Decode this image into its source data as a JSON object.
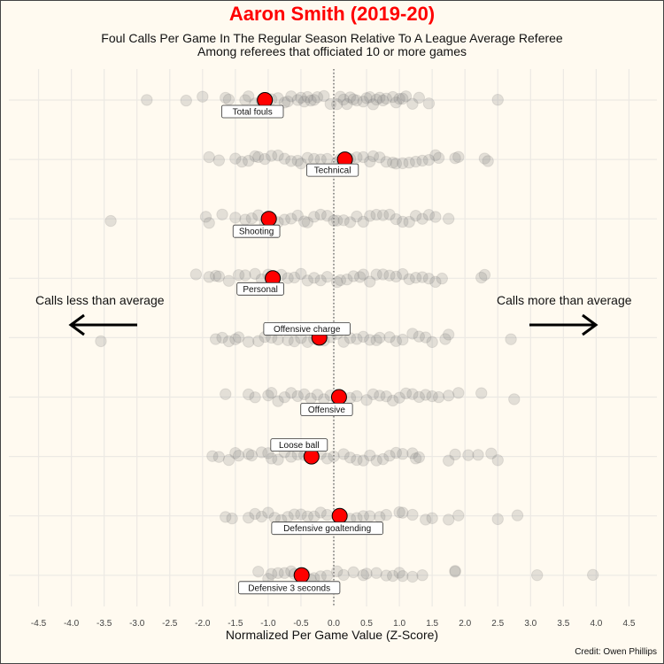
{
  "chart_data": {
    "type": "scatter",
    "title": "Aaron Smith (2019-20)",
    "subtitle_lines": [
      "Foul Calls Per Game In The Regular Season Relative To A League Average Referee",
      "Among referees that officiated 10 or more games"
    ],
    "xlabel": "Normalized Per Game Value (Z-Score)",
    "xlim": [
      -4.7,
      4.7
    ],
    "x_ticks": [
      -4.5,
      -4.0,
      -3.5,
      -3.0,
      -2.5,
      -2.0,
      -1.5,
      -1.0,
      -0.5,
      0.0,
      0.5,
      1.0,
      1.5,
      2.0,
      2.5,
      3.0,
      3.5,
      4.0,
      4.5
    ],
    "x_tick_labels": [
      "-4.5",
      "-4.0",
      "-3.5",
      "-3.0",
      "-2.5",
      "-2.0",
      "-1.5",
      "-1.0",
      "-0.5",
      "0.0",
      "0.5",
      "1.0",
      "1.5",
      "2.0",
      "2.5",
      "3.0",
      "3.5",
      "4.0",
      "4.5"
    ],
    "reference_line_x": 0,
    "grid": true,
    "highlight_color": "#ff0000",
    "point_color": "#808080",
    "categories": [
      "Total fouls",
      "Technical",
      "Shooting",
      "Personal",
      "Offensive charge",
      "Offensive",
      "Loose ball",
      "Defensive goaltending",
      "Defensive 3 seconds"
    ],
    "highlight_values": [
      -1.05,
      0.17,
      -0.99,
      -0.93,
      -0.22,
      0.08,
      -0.34,
      0.09,
      -0.49
    ],
    "series": [
      {
        "name": "Total fouls",
        "values": [
          -2.85,
          -2.25,
          -2.0,
          -1.65,
          -1.6,
          -1.35,
          -1.3,
          -1.2,
          -1.1,
          -0.95,
          -0.85,
          -0.75,
          -0.7,
          -0.65,
          -0.55,
          -0.5,
          -0.45,
          -0.4,
          -0.35,
          -0.3,
          -0.25,
          -0.15,
          -0.05,
          0.05,
          0.1,
          0.15,
          0.2,
          0.25,
          0.3,
          0.35,
          0.45,
          0.5,
          0.55,
          0.6,
          0.65,
          0.7,
          0.75,
          0.8,
          0.9,
          0.95,
          1.0,
          1.05,
          1.1,
          1.2,
          1.3,
          1.45,
          2.5
        ]
      },
      {
        "name": "Technical",
        "values": [
          -1.9,
          -1.75,
          -1.5,
          -1.4,
          -1.3,
          -1.2,
          -1.15,
          -1.05,
          -0.95,
          -0.85,
          -0.75,
          -0.65,
          -0.55,
          -0.5,
          -0.4,
          -0.3,
          -0.2,
          -0.1,
          0.05,
          0.1,
          0.25,
          0.35,
          0.45,
          0.55,
          0.6,
          0.7,
          0.8,
          0.9,
          0.95,
          1.05,
          1.15,
          1.25,
          1.35,
          1.45,
          1.55,
          1.6,
          1.85,
          1.9,
          2.3,
          2.35
        ]
      },
      {
        "name": "Shooting",
        "values": [
          -3.4,
          -1.95,
          -1.9,
          -1.7,
          -1.5,
          -1.35,
          -1.25,
          -1.15,
          -1.05,
          -0.95,
          -0.85,
          -0.75,
          -0.65,
          -0.55,
          -0.45,
          -0.4,
          -0.3,
          -0.2,
          -0.1,
          0.0,
          0.05,
          0.15,
          0.25,
          0.35,
          0.45,
          0.55,
          0.65,
          0.75,
          0.85,
          0.95,
          1.05,
          1.15,
          1.25,
          1.35,
          1.45,
          1.55,
          1.75
        ]
      },
      {
        "name": "Personal",
        "values": [
          -2.1,
          -1.9,
          -1.8,
          -1.75,
          -1.6,
          -1.45,
          -1.35,
          -1.2,
          -1.1,
          -1.0,
          -0.9,
          -0.8,
          -0.7,
          -0.6,
          -0.5,
          -0.4,
          -0.3,
          -0.2,
          -0.1,
          0.05,
          0.1,
          0.2,
          0.3,
          0.4,
          0.45,
          0.55,
          0.65,
          0.75,
          0.85,
          0.95,
          1.05,
          1.15,
          1.25,
          1.35,
          1.45,
          1.55,
          1.65,
          2.25,
          2.3
        ]
      },
      {
        "name": "Offensive charge",
        "values": [
          -3.55,
          -1.8,
          -1.7,
          -1.6,
          -1.5,
          -1.45,
          -1.3,
          -1.15,
          -1.05,
          -0.95,
          -0.85,
          -0.7,
          -0.6,
          -0.5,
          -0.4,
          -0.3,
          -0.15,
          -0.05,
          0.05,
          0.15,
          0.25,
          0.35,
          0.45,
          0.55,
          0.65,
          0.7,
          0.85,
          0.95,
          1.05,
          1.2,
          1.3,
          1.4,
          1.5,
          1.7,
          1.75,
          2.7
        ]
      },
      {
        "name": "Offensive",
        "values": [
          -1.65,
          -1.3,
          -1.2,
          -1.0,
          -0.95,
          -0.85,
          -0.75,
          -0.65,
          -0.55,
          -0.45,
          -0.35,
          -0.25,
          -0.15,
          -0.05,
          0.05,
          0.25,
          0.35,
          0.5,
          0.6,
          0.7,
          0.8,
          0.9,
          1.0,
          1.1,
          1.2,
          1.3,
          1.4,
          1.5,
          1.6,
          1.75,
          1.9,
          2.25,
          2.75
        ]
      },
      {
        "name": "Loose ball",
        "values": [
          -1.85,
          -1.75,
          -1.6,
          -1.5,
          -1.45,
          -1.3,
          -1.25,
          -1.1,
          -1.0,
          -0.95,
          -0.85,
          -0.75,
          -0.65,
          -0.55,
          -0.45,
          -0.2,
          -0.1,
          0.0,
          0.15,
          0.25,
          0.35,
          0.45,
          0.55,
          0.65,
          0.75,
          0.85,
          0.95,
          1.05,
          1.2,
          1.25,
          1.3,
          1.75,
          1.85,
          2.05,
          2.2,
          2.4,
          2.5
        ]
      },
      {
        "name": "Defensive goaltending",
        "values": [
          -1.65,
          -1.55,
          -1.3,
          -1.2,
          -1.1,
          -1.0,
          -0.9,
          -0.8,
          -0.7,
          -0.6,
          -0.5,
          -0.4,
          -0.3,
          -0.2,
          -0.1,
          0.25,
          0.35,
          0.45,
          0.55,
          0.7,
          0.8,
          1.0,
          1.05,
          1.2,
          1.4,
          1.5,
          1.75,
          1.9,
          2.5,
          2.8
        ]
      },
      {
        "name": "Defensive 3 seconds",
        "values": [
          -1.15,
          -1.0,
          -0.95,
          -0.85,
          -0.75,
          -0.65,
          -0.6,
          -0.45,
          -0.35,
          -0.3,
          -0.2,
          -0.1,
          0.05,
          0.15,
          0.3,
          0.45,
          0.5,
          0.65,
          0.8,
          0.9,
          1.0,
          1.05,
          1.2,
          1.35,
          1.85,
          1.85,
          3.1,
          3.95
        ]
      }
    ],
    "annotations": {
      "left": "Calls less than average",
      "right": "Calls more than average"
    },
    "credit": "Credit: Owen Phillips"
  }
}
